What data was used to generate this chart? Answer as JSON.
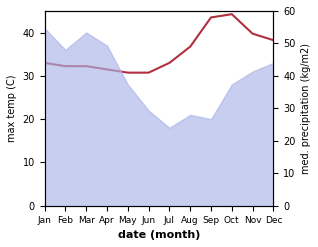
{
  "months": [
    "Jan",
    "Feb",
    "Mar",
    "Apr",
    "May",
    "Jun",
    "Jul",
    "Aug",
    "Sep",
    "Oct",
    "Nov",
    "Dec"
  ],
  "max_temp": [
    41,
    36,
    40,
    37,
    28,
    22,
    18,
    21,
    20,
    28,
    31,
    33
  ],
  "precipitation": [
    44,
    43,
    43,
    42,
    41,
    41,
    44,
    49,
    58,
    59,
    53,
    51
  ],
  "temp_color": "#b03040",
  "precip_fill_color": "#aab4e8",
  "precip_fill_alpha": 0.65,
  "ylabel_left": "max temp (C)",
  "ylabel_right": "med. precipitation (kg/m2)",
  "xlabel": "date (month)",
  "ylim_left": [
    0,
    45
  ],
  "ylim_right": [
    0,
    60
  ],
  "yticks_left": [
    0,
    10,
    20,
    30,
    40
  ],
  "yticks_right": [
    0,
    10,
    20,
    30,
    40,
    50,
    60
  ]
}
